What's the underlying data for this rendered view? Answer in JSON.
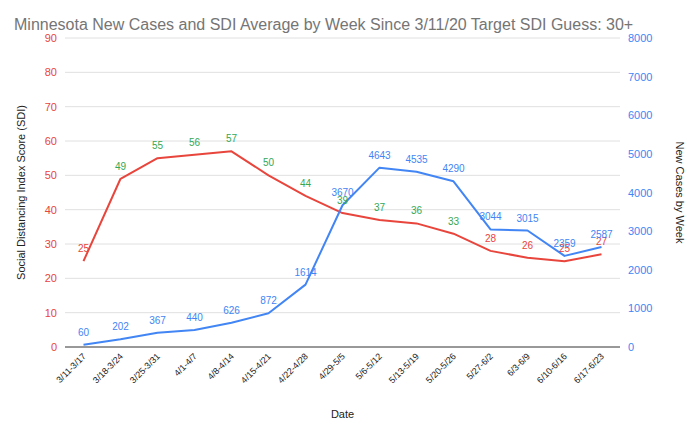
{
  "chart_data": {
    "type": "line",
    "title": "Minnesota New Cases and SDI Average by Week Since 3/11/20 Target SDI Guess: 30+",
    "x_label": "Date",
    "y_label": "Social Distancing Index Score (SDI)",
    "y2_label": "New Cases by Week",
    "categories": [
      "3/11-3/17",
      "3/18-3/24",
      "3/25-3/31",
      "4/1-4/7",
      "4/8-4/14",
      "4/15-4/21",
      "4/22-4/28",
      "4/29-5/5",
      "5/6-5/12",
      "5/13-5/19",
      "5/20-5/26",
      "5/27-6/2",
      "6/3-6/9",
      "6/10-6/16",
      "6/17-6/23"
    ],
    "series": [
      {
        "name": "SDI",
        "color": "#e8453c",
        "colors": [
          "#e8453c",
          "#34a853",
          "#34a853",
          "#34a853",
          "#34a853",
          "#34a853",
          "#34a853",
          "#34a853",
          "#34a853",
          "#34a853",
          "#34a853",
          "#e8453c",
          "#e8453c",
          "#e8453c",
          "#e8453c"
        ],
        "values": [
          25,
          49,
          55,
          56,
          57,
          50,
          44,
          39,
          37,
          36,
          33,
          28,
          26,
          25,
          27
        ]
      },
      {
        "name": "New Cases",
        "color": "#4285f4",
        "axis": "y2",
        "values": [
          60,
          202,
          367,
          440,
          626,
          872,
          1614,
          3670,
          4643,
          4535,
          4290,
          3044,
          3015,
          2359,
          2587
        ]
      }
    ],
    "ylim": [
      0,
      90
    ],
    "yticks": [
      0,
      10,
      20,
      30,
      40,
      50,
      60,
      70,
      80,
      90
    ],
    "y2lim": [
      0,
      8000
    ],
    "y2ticks": [
      0,
      1000,
      2000,
      3000,
      4000,
      5000,
      6000,
      7000,
      8000
    ],
    "grid": true,
    "data_labels": true
  }
}
